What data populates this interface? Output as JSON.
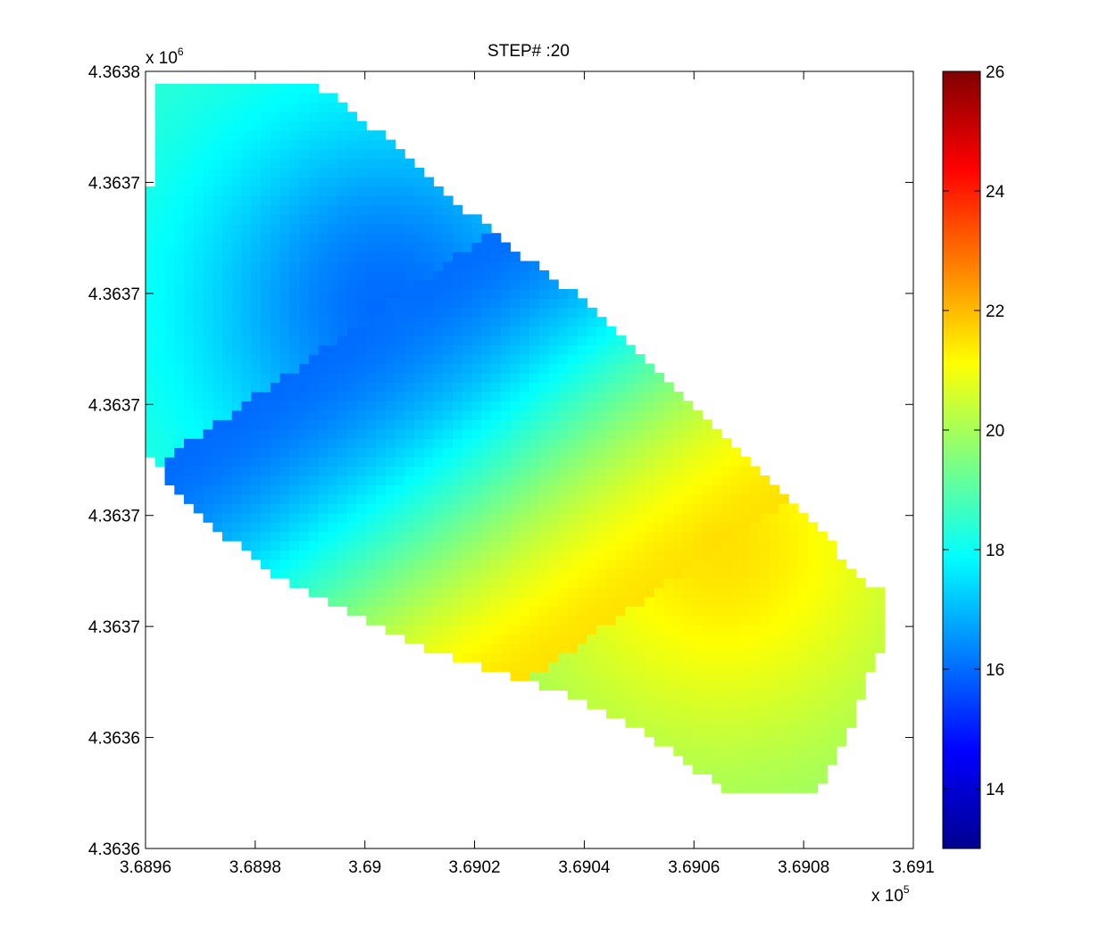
{
  "chart_data": {
    "type": "heatmap",
    "title": "STEP# :20",
    "x_ticks": [
      "3.6896",
      "3.6898",
      "3.69",
      "3.6902",
      "3.6904",
      "3.6906",
      "3.6908",
      "3.691"
    ],
    "x_exponent": {
      "base": "x 10",
      "power": "5"
    },
    "y_ticks": [
      "4.3636",
      "4.3636",
      "4.3637",
      "4.3637",
      "4.3637",
      "4.3637",
      "4.3637",
      "4.3638"
    ],
    "y_exponent": {
      "base": "x 10",
      "power": "6"
    },
    "xlim": [
      368960,
      369100
    ],
    "ylim": [
      4363600,
      4363800
    ],
    "colorbar": {
      "colormap": "jet",
      "range": [
        13,
        26
      ],
      "ticks": [
        14,
        16,
        18,
        20,
        22,
        24,
        26
      ],
      "tick_labels": [
        "14",
        "16",
        "18",
        "20",
        "22",
        "24",
        "26"
      ]
    },
    "field": {
      "region_outline": [
        [
          368961,
          4363796
        ],
        [
          368992,
          4363796
        ],
        [
          369008,
          4363778
        ],
        [
          369022,
          4363760
        ],
        [
          369046,
          4363734
        ],
        [
          369062,
          4363712
        ],
        [
          369078,
          4363690
        ],
        [
          369090,
          4363670
        ],
        [
          369094,
          4363666
        ],
        [
          369094,
          4363652
        ],
        [
          369088,
          4363628
        ],
        [
          369082,
          4363614
        ],
        [
          369067,
          4363614
        ],
        [
          369053,
          4363628
        ],
        [
          369037,
          4363640
        ],
        [
          369010,
          4363652
        ],
        [
          368995,
          4363662
        ],
        [
          368982,
          4363672
        ],
        [
          368975,
          4363680
        ],
        [
          368964,
          4363695
        ],
        [
          368956,
          4363712
        ],
        [
          368944,
          4363728
        ],
        [
          368929,
          4363750
        ],
        [
          368918,
          4363762
        ],
        [
          368907,
          4363770
        ],
        [
          368961,
          4363770
        ]
      ],
      "centers": [
        {
          "x": 369004,
          "y": 4363740,
          "value": 16.0
        },
        {
          "x": 369065,
          "y": 4363678,
          "value": 21.5
        }
      ],
      "background_value": 18.6
    }
  }
}
